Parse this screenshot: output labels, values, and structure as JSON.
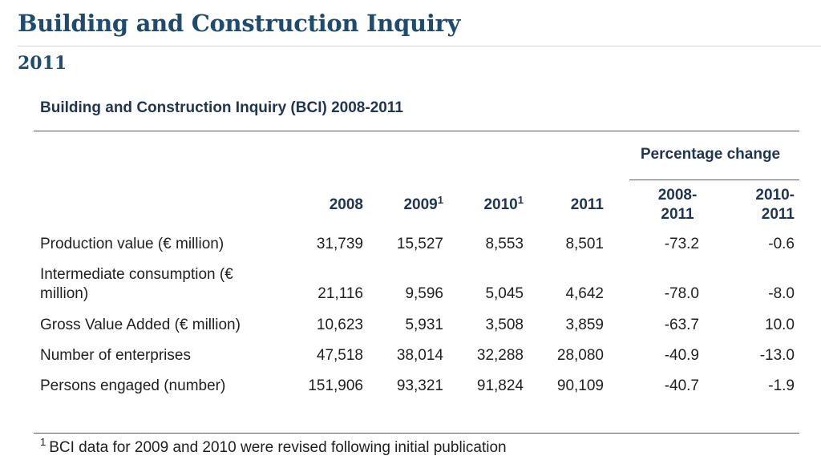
{
  "page": {
    "title": "Building and Construction Inquiry",
    "subtitle": "2011"
  },
  "table": {
    "caption": "Building and Construction Inquiry (BCI) 2008-2011",
    "group_header": "Percentage change",
    "columns": [
      {
        "label": "2008",
        "note": ""
      },
      {
        "label": "2009",
        "note": "1"
      },
      {
        "label": "2010",
        "note": "1"
      },
      {
        "label": "2011",
        "note": ""
      }
    ],
    "change_columns": [
      {
        "line1": "2008-",
        "line2": "2011"
      },
      {
        "line1": "2010-",
        "line2": "2011"
      }
    ],
    "rows": [
      {
        "label": "Production value (€ million)",
        "values": [
          "31,739",
          "15,527",
          "8,553",
          "8,501"
        ],
        "changes": [
          "-73.2",
          "-0.6"
        ]
      },
      {
        "label_line1": "Intermediate consumption (€",
        "label_line2": "million)",
        "values": [
          "21,116",
          "9,596",
          "5,045",
          "4,642"
        ],
        "changes": [
          "-78.0",
          "-8.0"
        ]
      },
      {
        "label": "Gross Value Added (€ million)",
        "values": [
          "10,623",
          "5,931",
          "3,508",
          "3,859"
        ],
        "changes": [
          "-63.7",
          "10.0"
        ]
      },
      {
        "label": "Number of enterprises",
        "values": [
          "47,518",
          "38,014",
          "32,288",
          "28,080"
        ],
        "changes": [
          "-40.9",
          "-13.0"
        ]
      },
      {
        "label": "Persons engaged (number)",
        "values": [
          "151,906",
          "93,321",
          "91,824",
          "90,109"
        ],
        "changes": [
          "-40.7",
          "-1.9"
        ]
      }
    ]
  },
  "footnote": {
    "marker": "1",
    "text": "BCI data for 2009 and 2010 were revised following initial publication"
  }
}
